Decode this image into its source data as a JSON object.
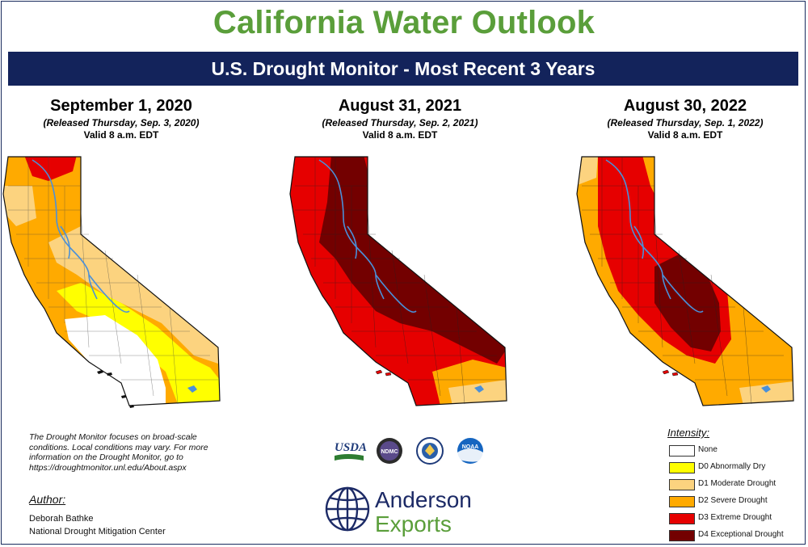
{
  "header": {
    "title": "California Water Outlook",
    "banner": "U.S. Drought Monitor - Most Recent 3 Years"
  },
  "maps": [
    {
      "date": "September 1, 2020",
      "released": "(Released Thursday, Sep. 3, 2020)",
      "valid": "Valid 8 a.m. EDT"
    },
    {
      "date": "August 31, 2021",
      "released": "(Released Thursday, Sep. 2, 2021)",
      "valid": "Valid 8 a.m. EDT"
    },
    {
      "date": "August 30, 2022",
      "released": "(Released Thursday, Sep. 1, 2022)",
      "valid": "Valid 8 a.m. EDT"
    }
  ],
  "note": "The Drought Monitor focuses on broad-scale conditions. Local conditions may vary. For more information on the Drought Monitor, go to https://droughtmonitor.unl.edu/About.aspx",
  "author": {
    "heading": "Author:",
    "name": "Deborah Bathke",
    "org": "National Drought Mitigation Center"
  },
  "partner_logos": {
    "usda": "USDA",
    "ndmc": "NDMC",
    "noaa": "NOAA"
  },
  "brand": {
    "line1": "Anderson",
    "line2": "Exports"
  },
  "legend": {
    "heading": "Intensity:",
    "items": [
      {
        "label": "None",
        "color": "#ffffff"
      },
      {
        "label": "D0 Abnormally Dry",
        "color": "#ffff00"
      },
      {
        "label": "D1 Moderate Drought",
        "color": "#fcd37f"
      },
      {
        "label": "D2 Severe Drought",
        "color": "#ffaa00"
      },
      {
        "label": "D3 Extreme Drought",
        "color": "#e60000"
      },
      {
        "label": "D4 Exceptional Drought",
        "color": "#730000"
      }
    ]
  },
  "colors": {
    "title_green": "#5a9e3a",
    "banner_navy": "#13235b",
    "river_blue": "#4a90d9"
  }
}
